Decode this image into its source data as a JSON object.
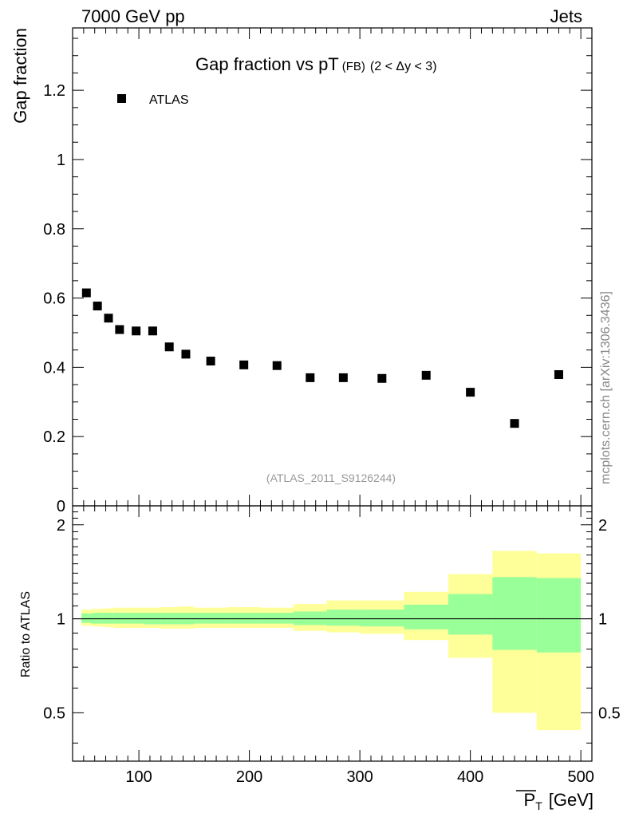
{
  "header": {
    "left_label": "7000 GeV pp",
    "right_label": "Jets"
  },
  "side_label": "mcplots.cern.ch [arXiv:1306.3436]",
  "chart_data": [
    {
      "type": "scatter",
      "title_main": "Gap fraction vs pT",
      "title_sub": "(FB)",
      "title_cut": "(2 < Δy < 3)",
      "ylabel": "Gap fraction",
      "analysis_id": "(ATLAS_2011_S9126244)",
      "legend": {
        "entry": "ATLAS",
        "placement": "top-left"
      },
      "xlim": [
        40,
        510
      ],
      "ylim": [
        0,
        1.38
      ],
      "yticks": [
        {
          "value": 0.2,
          "label": "0.2"
        },
        {
          "value": 0.4,
          "label": "0.4"
        },
        {
          "value": 0.6,
          "label": "0.6"
        },
        {
          "value": 0.8,
          "label": "0.8"
        },
        {
          "value": 1.0,
          "label": "1"
        },
        {
          "value": 1.2,
          "label": "1.2"
        },
        {
          "value": 0.0,
          "label": "0"
        }
      ],
      "series": [
        {
          "name": "ATLAS",
          "x": [
            52.5,
            62.5,
            72.5,
            82.5,
            97.5,
            112.5,
            127.5,
            142.5,
            165,
            195,
            225,
            255,
            285,
            320,
            360,
            400,
            440,
            480
          ],
          "y": [
            0.615,
            0.577,
            0.542,
            0.509,
            0.505,
            0.505,
            0.459,
            0.438,
            0.418,
            0.407,
            0.405,
            0.37,
            0.37,
            0.368,
            0.377,
            0.328,
            0.238,
            0.379
          ]
        }
      ]
    },
    {
      "type": "area",
      "ylabel": "Ratio to ATLAS",
      "xlabel_symbol": "P",
      "xlabel_sub": "T",
      "xlabel_unit": "[GeV]",
      "xlim": [
        40,
        510
      ],
      "ylim": [
        0.35,
        2.3
      ],
      "xticks": [
        {
          "value": 100,
          "label": "100"
        },
        {
          "value": 200,
          "label": "200"
        },
        {
          "value": 300,
          "label": "300"
        },
        {
          "value": 400,
          "label": "400"
        },
        {
          "value": 500,
          "label": "500"
        }
      ],
      "yticks": [
        {
          "value": 0.5,
          "label": "0.5"
        },
        {
          "value": 1,
          "label": "1"
        },
        {
          "value": 2,
          "label": "2"
        }
      ],
      "reference_line": 1,
      "bands": [
        {
          "xlo": 48,
          "xhi": 57,
          "stat_lo": 0.97,
          "stat_hi": 1.04,
          "tot_lo": 0.95,
          "tot_hi": 1.07
        },
        {
          "xlo": 57,
          "xhi": 67,
          "stat_lo": 0.965,
          "stat_hi": 1.045,
          "tot_lo": 0.945,
          "tot_hi": 1.075
        },
        {
          "xlo": 67,
          "xhi": 77,
          "stat_lo": 0.965,
          "stat_hi": 1.045,
          "tot_lo": 0.94,
          "tot_hi": 1.08
        },
        {
          "xlo": 77,
          "xhi": 90,
          "stat_lo": 0.965,
          "stat_hi": 1.045,
          "tot_lo": 0.935,
          "tot_hi": 1.085
        },
        {
          "xlo": 90,
          "xhi": 105,
          "stat_lo": 0.965,
          "stat_hi": 1.045,
          "tot_lo": 0.935,
          "tot_hi": 1.085
        },
        {
          "xlo": 105,
          "xhi": 120,
          "stat_lo": 0.96,
          "stat_hi": 1.045,
          "tot_lo": 0.935,
          "tot_hi": 1.085
        },
        {
          "xlo": 120,
          "xhi": 135,
          "stat_lo": 0.96,
          "stat_hi": 1.045,
          "tot_lo": 0.93,
          "tot_hi": 1.09
        },
        {
          "xlo": 135,
          "xhi": 150,
          "stat_lo": 0.96,
          "stat_hi": 1.045,
          "tot_lo": 0.93,
          "tot_hi": 1.095
        },
        {
          "xlo": 150,
          "xhi": 180,
          "stat_lo": 0.965,
          "stat_hi": 1.045,
          "tot_lo": 0.935,
          "tot_hi": 1.085
        },
        {
          "xlo": 180,
          "xhi": 210,
          "stat_lo": 0.965,
          "stat_hi": 1.045,
          "tot_lo": 0.935,
          "tot_hi": 1.09
        },
        {
          "xlo": 210,
          "xhi": 240,
          "stat_lo": 0.965,
          "stat_hi": 1.045,
          "tot_lo": 0.935,
          "tot_hi": 1.085
        },
        {
          "xlo": 240,
          "xhi": 270,
          "stat_lo": 0.955,
          "stat_hi": 1.055,
          "tot_lo": 0.915,
          "tot_hi": 1.115
        },
        {
          "xlo": 270,
          "xhi": 300,
          "stat_lo": 0.95,
          "stat_hi": 1.07,
          "tot_lo": 0.905,
          "tot_hi": 1.145
        },
        {
          "xlo": 300,
          "xhi": 340,
          "stat_lo": 0.945,
          "stat_hi": 1.07,
          "tot_lo": 0.895,
          "tot_hi": 1.145
        },
        {
          "xlo": 340,
          "xhi": 380,
          "stat_lo": 0.925,
          "stat_hi": 1.11,
          "tot_lo": 0.855,
          "tot_hi": 1.22
        },
        {
          "xlo": 380,
          "xhi": 420,
          "stat_lo": 0.89,
          "stat_hi": 1.2,
          "tot_lo": 0.75,
          "tot_hi": 1.39
        },
        {
          "xlo": 420,
          "xhi": 460,
          "stat_lo": 0.795,
          "stat_hi": 1.36,
          "tot_lo": 0.5,
          "tot_hi": 1.65
        },
        {
          "xlo": 460,
          "xhi": 500,
          "stat_lo": 0.78,
          "stat_hi": 1.35,
          "tot_lo": 0.44,
          "tot_hi": 1.62
        }
      ],
      "colors": {
        "stat": "#99ff99",
        "total": "#ffff99",
        "line": "#000000"
      }
    }
  ]
}
